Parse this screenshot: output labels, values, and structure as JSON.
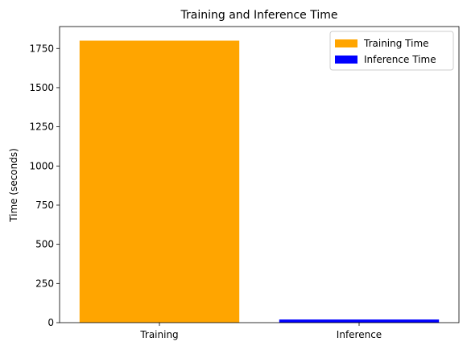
{
  "chart_data": {
    "type": "bar",
    "title": "Training and Inference Time",
    "xlabel": "",
    "ylabel": "Time (seconds)",
    "categories": [
      "Training",
      "Inference"
    ],
    "series": [
      {
        "name": "Training Time",
        "color": "#FFA500",
        "values": [
          1800,
          0
        ]
      },
      {
        "name": "Inference Time",
        "color": "#0000FF",
        "values": [
          0,
          20
        ]
      }
    ],
    "ylim": [
      0,
      1890
    ],
    "yticks": [
      0,
      250,
      500,
      750,
      1000,
      1250,
      1500,
      1750
    ],
    "grid": false,
    "legend": "top-right"
  }
}
